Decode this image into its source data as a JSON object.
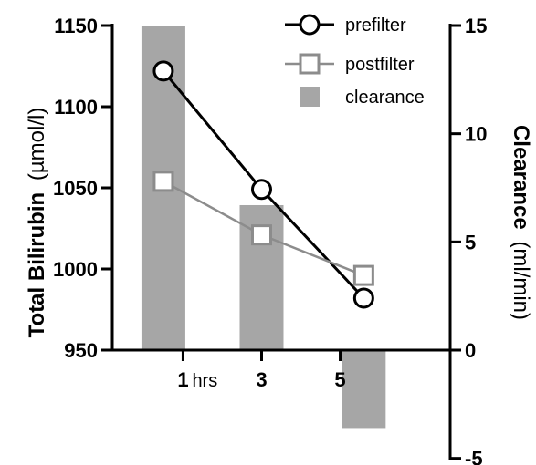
{
  "chart_data": {
    "type": "bar+line",
    "x_ticks": [
      {
        "x": 1,
        "label": "1",
        "unit": "hrs"
      },
      {
        "x": 3,
        "label": "3"
      },
      {
        "x": 5,
        "label": "5"
      }
    ],
    "xlim": [
      -0.8,
      7.8
    ],
    "left_axis": {
      "label_bold": "Total Bilirubin",
      "label_unit": "(µmol/l)",
      "ylim": [
        950,
        1150
      ],
      "ticks": [
        "950",
        "1000",
        "1050",
        "1100",
        "1150"
      ]
    },
    "right_axis": {
      "label_bold": "Clearance",
      "label_unit": "(ml/min)",
      "ylim": [
        -5,
        15
      ],
      "ticks": [
        "-5",
        "0",
        "5",
        "10",
        "15"
      ]
    },
    "series": [
      {
        "name": "prefilter",
        "kind": "line",
        "marker": "circle",
        "axis": "left",
        "color": "#000000",
        "x": [
          0.5,
          3,
          5.6
        ],
        "values": [
          1122,
          1049,
          982
        ]
      },
      {
        "name": "postfilter",
        "kind": "line",
        "marker": "square",
        "axis": "left",
        "color": "#8c8c8c",
        "x": [
          0.5,
          3,
          5.6
        ],
        "values": [
          1054,
          1021,
          996
        ]
      },
      {
        "name": "clearance",
        "kind": "bar",
        "axis": "right",
        "color": "#a6a6a6",
        "x": [
          0.5,
          3,
          5.6
        ],
        "values": [
          15,
          6.7,
          -3.6
        ]
      }
    ],
    "legend": {
      "position": "top-right",
      "entries": [
        "prefilter",
        "postfilter",
        "clearance"
      ]
    }
  }
}
